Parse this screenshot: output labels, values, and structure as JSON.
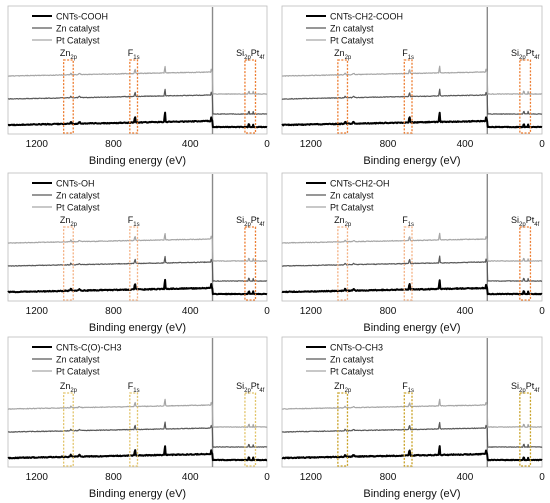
{
  "chart_data": [
    {
      "type": "line",
      "xlabel": "Binding energy (eV)",
      "xlim": [
        1350,
        0
      ],
      "x_reversed": true,
      "xticks": [
        "1200",
        "800",
        "400",
        "0"
      ],
      "tick_values": [
        1200,
        800,
        400,
        0
      ],
      "grid": false,
      "legend_position": "top-left",
      "series": [
        {
          "name": "CNTs-COOH",
          "color": "#000000",
          "offset": 0
        },
        {
          "name": "Zn catalyst",
          "color": "#595959",
          "offset": 1
        },
        {
          "name": "Pt Catalyst",
          "color": "#a6a6a6",
          "offset": 2
        }
      ],
      "annotations": [
        {
          "main": "Zn",
          "sub": "2p",
          "from": 1060,
          "to": 1010,
          "color": "#ed7d31"
        },
        {
          "main": "F",
          "sub": "1s",
          "from": 715,
          "to": 675,
          "color": "#ed7d31"
        },
        {
          "main": "Si",
          "sub": "2p",
          "main2": "Pt",
          "sub2": "4f",
          "from": 115,
          "to": 60,
          "color": "#ed7d31"
        }
      ]
    },
    {
      "type": "line",
      "xlabel": "Binding energy (eV)",
      "xlim": [
        1350,
        0
      ],
      "x_reversed": true,
      "xticks": [
        "1200",
        "800",
        "400",
        "0"
      ],
      "tick_values": [
        1200,
        800,
        400,
        0
      ],
      "grid": false,
      "legend_position": "top-left",
      "series": [
        {
          "name": "CNTs-CH2-COOH",
          "color": "#000000",
          "offset": 0
        },
        {
          "name": "Zn catalyst",
          "color": "#595959",
          "offset": 1
        },
        {
          "name": "Pt Catalyst",
          "color": "#a6a6a6",
          "offset": 2
        }
      ],
      "annotations": [
        {
          "main": "Zn",
          "sub": "2p",
          "from": 1060,
          "to": 1010,
          "color": "#ed7d31"
        },
        {
          "main": "F",
          "sub": "1s",
          "from": 715,
          "to": 675,
          "color": "#ed7d31"
        },
        {
          "main": "Si",
          "sub": "2p",
          "main2": "Pt",
          "sub2": "4f",
          "from": 115,
          "to": 60,
          "color": "#ed7d31"
        }
      ]
    },
    {
      "type": "line",
      "xlabel": "Binding energy (eV)",
      "xlim": [
        1350,
        0
      ],
      "x_reversed": true,
      "xticks": [
        "1200",
        "800",
        "400",
        "0"
      ],
      "tick_values": [
        1200,
        800,
        400,
        0
      ],
      "grid": false,
      "legend_position": "top-left",
      "series": [
        {
          "name": "CNTs-OH",
          "color": "#000000",
          "offset": 0
        },
        {
          "name": "Zn catalyst",
          "color": "#595959",
          "offset": 1
        },
        {
          "name": "Pt Catalyst",
          "color": "#a6a6a6",
          "offset": 2
        }
      ],
      "annotations": [
        {
          "main": "Zn",
          "sub": "2p",
          "from": 1060,
          "to": 1010,
          "color": "#f4b183"
        },
        {
          "main": "F",
          "sub": "1s",
          "from": 715,
          "to": 675,
          "color": "#f4b183"
        },
        {
          "main": "Si",
          "sub": "2p",
          "main2": "Pt",
          "sub2": "4f",
          "from": 115,
          "to": 60,
          "color": "#ed7d31"
        }
      ]
    },
    {
      "type": "line",
      "xlabel": "Binding energy (eV)",
      "xlim": [
        1350,
        0
      ],
      "x_reversed": true,
      "xticks": [
        "1200",
        "800",
        "400",
        "0"
      ],
      "tick_values": [
        1200,
        800,
        400,
        0
      ],
      "grid": false,
      "legend_position": "top-left",
      "series": [
        {
          "name": "CNTs-CH2-OH",
          "color": "#000000",
          "offset": 0
        },
        {
          "name": "Zn catalyst",
          "color": "#595959",
          "offset": 1
        },
        {
          "name": "Pt Catalyst",
          "color": "#a6a6a6",
          "offset": 2
        }
      ],
      "annotations": [
        {
          "main": "Zn",
          "sub": "2p",
          "from": 1060,
          "to": 1010,
          "color": "#f4b183"
        },
        {
          "main": "F",
          "sub": "1s",
          "from": 715,
          "to": 675,
          "color": "#f4b183"
        },
        {
          "main": "Si",
          "sub": "2p",
          "main2": "Pt",
          "sub2": "4f",
          "from": 115,
          "to": 60,
          "color": "#ed7d31"
        }
      ]
    },
    {
      "type": "line",
      "xlabel": "Binding energy (eV)",
      "xlim": [
        1350,
        0
      ],
      "x_reversed": true,
      "xticks": [
        "1200",
        "800",
        "400",
        "0"
      ],
      "tick_values": [
        1200,
        800,
        400,
        0
      ],
      "grid": false,
      "legend_position": "top-left",
      "series": [
        {
          "name": "CNTs-C(O)-CH3",
          "color": "#000000",
          "offset": 0
        },
        {
          "name": "Zn catalyst",
          "color": "#595959",
          "offset": 1
        },
        {
          "name": "Pt Catalyst",
          "color": "#a6a6a6",
          "offset": 2
        }
      ],
      "annotations": [
        {
          "main": "Zn",
          "sub": "2p",
          "from": 1060,
          "to": 1010,
          "color": "#e2c46a"
        },
        {
          "main": "F",
          "sub": "1s",
          "from": 715,
          "to": 675,
          "color": "#e2c46a"
        },
        {
          "main": "Si",
          "sub": "2p",
          "main2": "Pt",
          "sub2": "4f",
          "from": 115,
          "to": 60,
          "color": "#e2c46a"
        }
      ]
    },
    {
      "type": "line",
      "xlabel": "Binding energy (eV)",
      "xlim": [
        1350,
        0
      ],
      "x_reversed": true,
      "xticks": [
        "1200",
        "800",
        "400",
        "0"
      ],
      "tick_values": [
        1200,
        800,
        400,
        0
      ],
      "grid": false,
      "legend_position": "top-left",
      "series": [
        {
          "name": "CNTs-O-CH3",
          "color": "#000000",
          "offset": 0
        },
        {
          "name": "Zn catalyst",
          "color": "#595959",
          "offset": 1
        },
        {
          "name": "Pt Catalyst",
          "color": "#a6a6a6",
          "offset": 2
        }
      ],
      "annotations": [
        {
          "main": "Zn",
          "sub": "2p",
          "from": 1060,
          "to": 1010,
          "color": "#c9a227"
        },
        {
          "main": "F",
          "sub": "1s",
          "from": 715,
          "to": 675,
          "color": "#c9a227"
        },
        {
          "main": "Si",
          "sub": "2p",
          "main2": "Pt",
          "sub2": "4f",
          "from": 115,
          "to": 60,
          "color": "#c9a227"
        }
      ]
    }
  ]
}
